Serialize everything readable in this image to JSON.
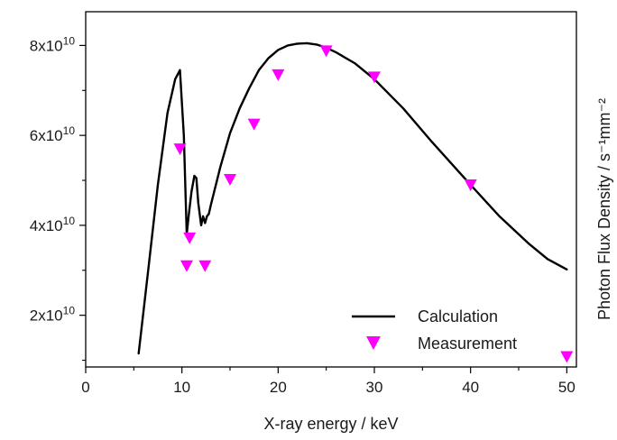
{
  "chart_data": {
    "type": "line",
    "xlabel": "X-ray energy / keV",
    "ylabel": "Photon Flux Density / s⁻¹mm⁻²",
    "xlim": [
      0,
      51
    ],
    "ylim": [
      8500000000.0,
      87500000000.0
    ],
    "x_ticks": [
      0,
      10,
      20,
      30,
      40,
      50
    ],
    "x_tick_labels": [
      "0",
      "10",
      "20",
      "30",
      "40",
      "50"
    ],
    "y_ticks": [
      20000000000.0,
      40000000000.0,
      60000000000.0,
      80000000000.0
    ],
    "y_tick_labels": [
      "2x10¹⁰",
      "4x10¹⁰",
      "6x10¹⁰",
      "8x10¹⁰"
    ],
    "grid": false,
    "legend_position": "bottom-right",
    "series": [
      {
        "name": "Calculation",
        "kind": "line",
        "color": "#000000",
        "x": [
          5.5,
          6.5,
          7.5,
          8.5,
          9.3,
          9.8,
          10.2,
          10.5,
          10.7,
          11.0,
          11.3,
          11.5,
          11.7,
          12.0,
          12.2,
          12.4,
          12.6,
          12.8,
          13.0,
          14.0,
          15.0,
          16.0,
          17.0,
          18.0,
          19.0,
          20.0,
          21.0,
          22.0,
          23.0,
          24.0,
          25.0,
          26.0,
          28.0,
          30.0,
          33.0,
          36.0,
          40.0,
          43.0,
          46.0,
          48.0,
          50.0
        ],
        "y": [
          11500000000.0,
          30000000000.0,
          49000000000.0,
          65000000000.0,
          72500000000.0,
          74500000000.0,
          60000000000.0,
          38000000000.0,
          42000000000.0,
          47500000000.0,
          51000000000.0,
          50500000000.0,
          45000000000.0,
          40000000000.0,
          42000000000.0,
          40500000000.0,
          42000000000.0,
          42500000000.0,
          44500000000.0,
          53000000000.0,
          60500000000.0,
          66000000000.0,
          70500000000.0,
          74500000000.0,
          77200000000.0,
          79000000000.0,
          80000000000.0,
          80400000000.0,
          80500000000.0,
          80200000000.0,
          79500000000.0,
          78500000000.0,
          76000000000.0,
          72500000000.0,
          66000000000.0,
          58500000000.0,
          49000000000.0,
          42000000000.0,
          36000000000.0,
          32500000000.0,
          30200000000.0
        ]
      },
      {
        "name": "Measurement",
        "kind": "scatter",
        "marker": "triangle-down",
        "color": "#ff00ff",
        "x": [
          9.8,
          10.5,
          10.8,
          12.4,
          15.0,
          17.5,
          20.0,
          25.0,
          30.0,
          40.0,
          50.0
        ],
        "y": [
          57000000000.0,
          31000000000.0,
          37200000000.0,
          31000000000.0,
          50200000000.0,
          62500000000.0,
          73500000000.0,
          78800000000.0,
          73000000000.0,
          49000000000.0,
          10800000000.0
        ]
      }
    ]
  }
}
